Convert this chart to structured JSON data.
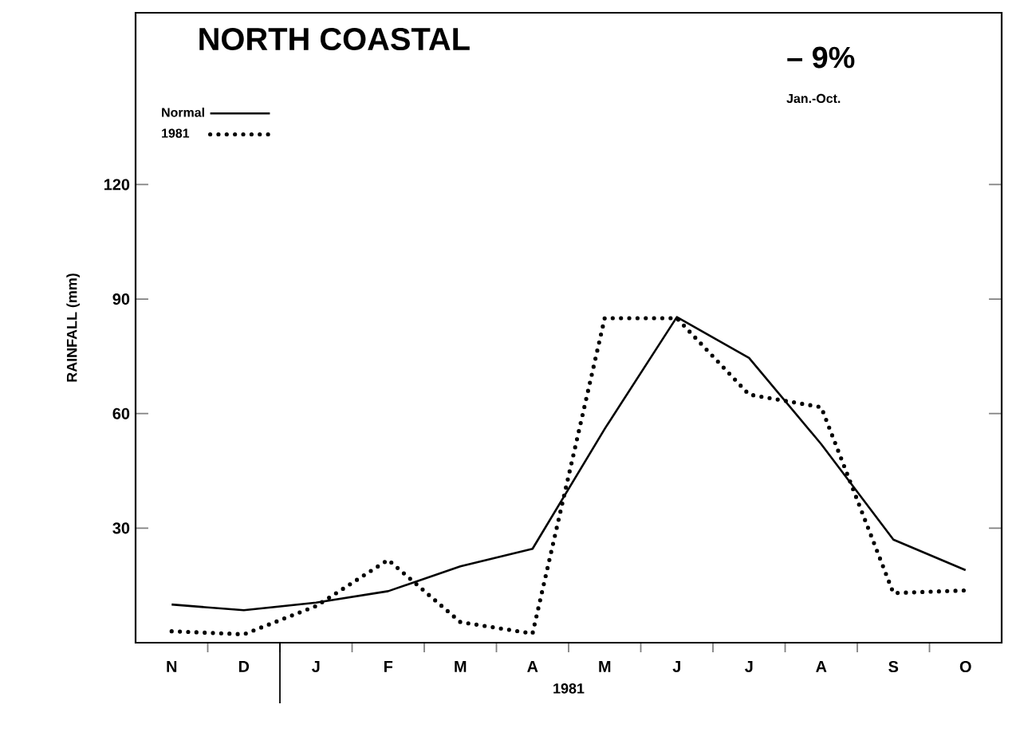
{
  "chart_data": {
    "type": "line",
    "title": "NORTH COASTAL",
    "ylabel": "RAINFALL (mm)",
    "xlabel": "1981",
    "categories": [
      "N",
      "D",
      "J",
      "F",
      "M",
      "A",
      "M",
      "J",
      "J",
      "A",
      "S",
      "O"
    ],
    "series": [
      {
        "name": "Normal",
        "color": "#000000",
        "line_style": "solid",
        "values": [
          10,
          8.5,
          10.5,
          13.5,
          20,
          24.6,
          56,
          85.3,
          74.6,
          52,
          27,
          19
        ]
      },
      {
        "name": "1981",
        "color": "#000000",
        "line_style": "dotted",
        "values": [
          3,
          2.2,
          9.6,
          21.7,
          5.4,
          2.4,
          85,
          85,
          65,
          61.7,
          13,
          13.7
        ]
      }
    ],
    "ylim": [
      0,
      165
    ],
    "yticks": [
      30,
      60,
      90,
      120
    ],
    "grid": false,
    "legend": "top left",
    "marker": "none",
    "annotations": [
      "– 9%",
      "Jan.-Oct."
    ]
  }
}
